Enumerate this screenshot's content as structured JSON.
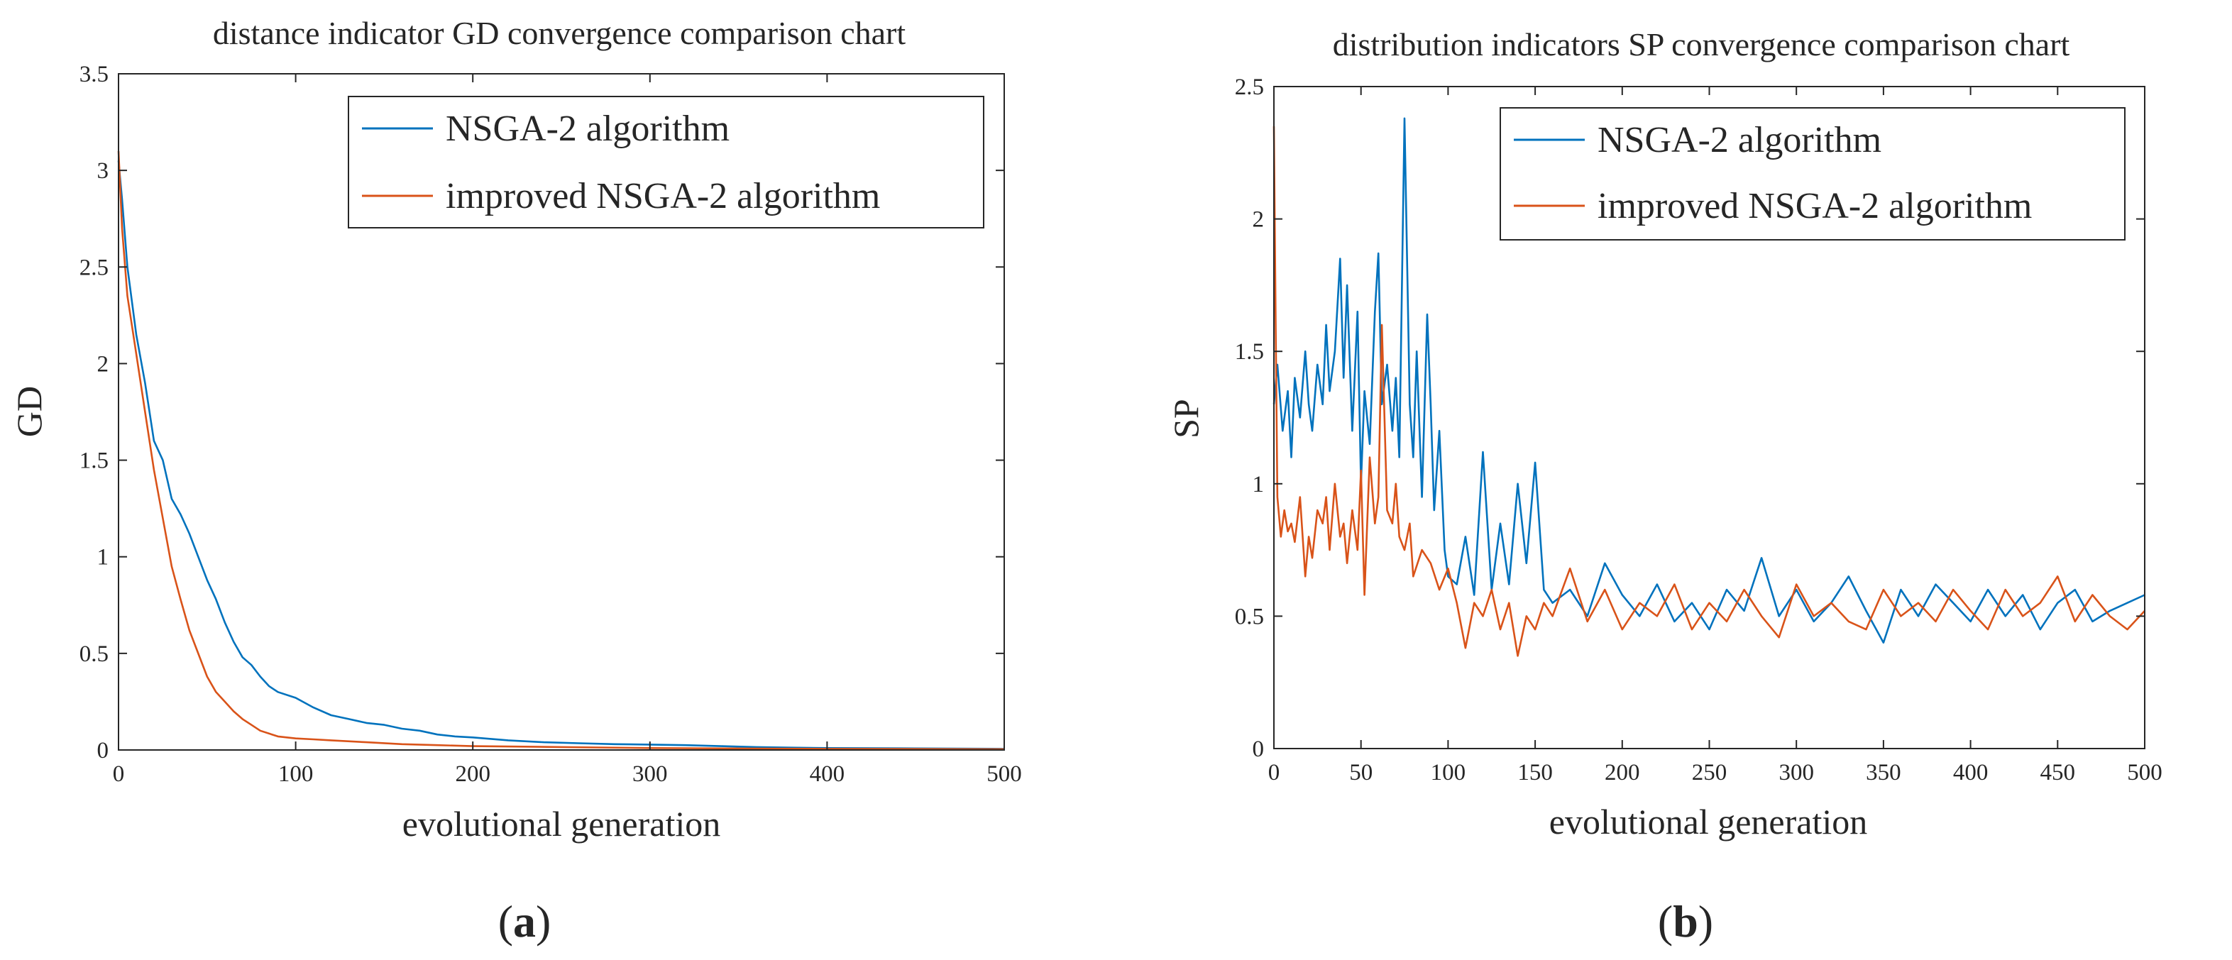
{
  "colors": {
    "nsga2": "#0072BD",
    "improved": "#D95319",
    "axis": "#262626"
  },
  "panels": [
    {
      "label_parts": [
        "(",
        "a",
        ")"
      ]
    },
    {
      "label_parts": [
        "(",
        "b",
        ")"
      ]
    }
  ],
  "chart_data": [
    {
      "type": "line",
      "title": "distance indicator GD convergence comparison chart",
      "xlabel": "evolutional generation",
      "ylabel": "GD",
      "xlim": [
        0,
        500
      ],
      "ylim": [
        0,
        3.5
      ],
      "xticks": [
        0,
        100,
        200,
        300,
        400,
        500
      ],
      "yticks": [
        0,
        0.5,
        1,
        1.5,
        2,
        2.5,
        3,
        3.5
      ],
      "xtick_labels": [
        "0",
        "100",
        "200",
        "300",
        "400",
        "500"
      ],
      "ytick_labels": [
        "0",
        "0.5",
        "1",
        "1.5",
        "2",
        "2.5",
        "3",
        "3.5"
      ],
      "legend_position": "top-right",
      "series": [
        {
          "name": "NSGA-2 algorithm",
          "key": "nsga2",
          "x": [
            0,
            2,
            5,
            10,
            15,
            20,
            25,
            30,
            35,
            40,
            45,
            50,
            55,
            60,
            65,
            70,
            75,
            80,
            85,
            90,
            100,
            110,
            120,
            130,
            140,
            150,
            160,
            170,
            180,
            190,
            200,
            220,
            240,
            260,
            280,
            300,
            320,
            340,
            360,
            380,
            400,
            450,
            500
          ],
          "values": [
            3.05,
            2.85,
            2.5,
            2.15,
            1.9,
            1.6,
            1.5,
            1.3,
            1.22,
            1.12,
            1.0,
            0.88,
            0.78,
            0.66,
            0.56,
            0.48,
            0.44,
            0.38,
            0.33,
            0.3,
            0.27,
            0.22,
            0.18,
            0.16,
            0.14,
            0.13,
            0.11,
            0.1,
            0.08,
            0.07,
            0.065,
            0.05,
            0.04,
            0.035,
            0.03,
            0.028,
            0.025,
            0.02,
            0.015,
            0.012,
            0.01,
            0.008,
            0.006
          ]
        },
        {
          "name": "improved NSGA-2 algorithm",
          "key": "improved",
          "x": [
            0,
            2,
            5,
            10,
            15,
            20,
            25,
            30,
            35,
            40,
            45,
            50,
            55,
            60,
            65,
            70,
            75,
            80,
            90,
            100,
            110,
            120,
            140,
            160,
            180,
            200,
            250,
            300,
            400,
            500
          ],
          "values": [
            3.1,
            2.7,
            2.35,
            2.05,
            1.75,
            1.45,
            1.2,
            0.95,
            0.78,
            0.62,
            0.5,
            0.38,
            0.3,
            0.25,
            0.2,
            0.16,
            0.13,
            0.1,
            0.07,
            0.06,
            0.055,
            0.05,
            0.04,
            0.03,
            0.025,
            0.02,
            0.015,
            0.01,
            0.006,
            0.004
          ]
        }
      ]
    },
    {
      "type": "line",
      "title": "distribution indicators SP convergence comparison chart",
      "xlabel": "evolutional generation",
      "ylabel": "SP",
      "xlim": [
        0,
        500
      ],
      "ylim": [
        0,
        2.5
      ],
      "xticks": [
        0,
        50,
        100,
        150,
        200,
        250,
        300,
        350,
        400,
        450,
        500
      ],
      "yticks": [
        0,
        0.5,
        1,
        1.5,
        2,
        2.5
      ],
      "xtick_labels": [
        "0",
        "50",
        "100",
        "150",
        "200",
        "250",
        "300",
        "350",
        "400",
        "450",
        "500"
      ],
      "ytick_labels": [
        "0",
        "0.5",
        "1",
        "1.5",
        "2",
        "2.5"
      ],
      "legend_position": "top-right",
      "series": [
        {
          "name": "NSGA-2 algorithm",
          "key": "nsga2",
          "x": [
            0,
            2,
            5,
            8,
            10,
            12,
            15,
            18,
            20,
            22,
            25,
            28,
            30,
            32,
            35,
            38,
            40,
            42,
            45,
            48,
            50,
            52,
            55,
            58,
            60,
            62,
            65,
            68,
            70,
            72,
            75,
            78,
            80,
            82,
            85,
            88,
            90,
            92,
            95,
            98,
            100,
            105,
            110,
            115,
            120,
            125,
            130,
            135,
            140,
            145,
            150,
            155,
            160,
            170,
            180,
            190,
            200,
            210,
            220,
            230,
            240,
            250,
            260,
            270,
            280,
            290,
            300,
            310,
            320,
            330,
            340,
            350,
            360,
            370,
            380,
            390,
            400,
            410,
            420,
            430,
            440,
            450,
            460,
            470,
            480,
            490,
            500
          ],
          "values": [
            1.3,
            1.45,
            1.2,
            1.35,
            1.1,
            1.4,
            1.25,
            1.5,
            1.3,
            1.2,
            1.45,
            1.3,
            1.6,
            1.35,
            1.5,
            1.85,
            1.4,
            1.75,
            1.2,
            1.65,
            1.0,
            1.35,
            1.15,
            1.65,
            1.87,
            1.3,
            1.45,
            1.2,
            1.4,
            1.1,
            2.38,
            1.3,
            1.1,
            1.5,
            0.95,
            1.64,
            1.3,
            0.9,
            1.2,
            0.75,
            0.65,
            0.62,
            0.8,
            0.58,
            1.12,
            0.6,
            0.85,
            0.62,
            1.0,
            0.7,
            1.08,
            0.6,
            0.55,
            0.6,
            0.5,
            0.7,
            0.58,
            0.5,
            0.62,
            0.48,
            0.55,
            0.45,
            0.6,
            0.52,
            0.72,
            0.5,
            0.6,
            0.48,
            0.55,
            0.65,
            0.52,
            0.4,
            0.6,
            0.5,
            0.62,
            0.55,
            0.48,
            0.6,
            0.5,
            0.58,
            0.45,
            0.55,
            0.6,
            0.48,
            0.52,
            0.55,
            0.58
          ]
        },
        {
          "name": "improved NSGA-2 algorithm",
          "key": "improved",
          "x": [
            0,
            1,
            2,
            4,
            6,
            8,
            10,
            12,
            15,
            18,
            20,
            22,
            25,
            28,
            30,
            32,
            35,
            38,
            40,
            42,
            45,
            48,
            50,
            52,
            55,
            58,
            60,
            62,
            65,
            68,
            70,
            72,
            75,
            78,
            80,
            85,
            90,
            95,
            100,
            105,
            110,
            115,
            120,
            125,
            130,
            135,
            140,
            145,
            150,
            155,
            160,
            170,
            180,
            190,
            200,
            210,
            220,
            230,
            240,
            250,
            260,
            270,
            280,
            290,
            300,
            310,
            320,
            330,
            340,
            350,
            360,
            370,
            380,
            390,
            400,
            410,
            420,
            430,
            440,
            450,
            460,
            470,
            480,
            490,
            500
          ],
          "values": [
            2.35,
            1.6,
            0.95,
            0.8,
            0.9,
            0.82,
            0.85,
            0.78,
            0.95,
            0.65,
            0.8,
            0.72,
            0.9,
            0.85,
            0.95,
            0.75,
            1.0,
            0.8,
            0.85,
            0.7,
            0.9,
            0.75,
            1.05,
            0.58,
            1.1,
            0.85,
            0.95,
            1.6,
            0.9,
            0.85,
            1.0,
            0.8,
            0.75,
            0.85,
            0.65,
            0.75,
            0.7,
            0.6,
            0.68,
            0.55,
            0.38,
            0.55,
            0.5,
            0.6,
            0.45,
            0.55,
            0.35,
            0.5,
            0.45,
            0.55,
            0.5,
            0.68,
            0.48,
            0.6,
            0.45,
            0.55,
            0.5,
            0.62,
            0.45,
            0.55,
            0.48,
            0.6,
            0.5,
            0.42,
            0.62,
            0.5,
            0.55,
            0.48,
            0.45,
            0.6,
            0.5,
            0.55,
            0.48,
            0.6,
            0.52,
            0.45,
            0.6,
            0.5,
            0.55,
            0.65,
            0.48,
            0.58,
            0.5,
            0.45,
            0.52
          ]
        }
      ]
    }
  ]
}
